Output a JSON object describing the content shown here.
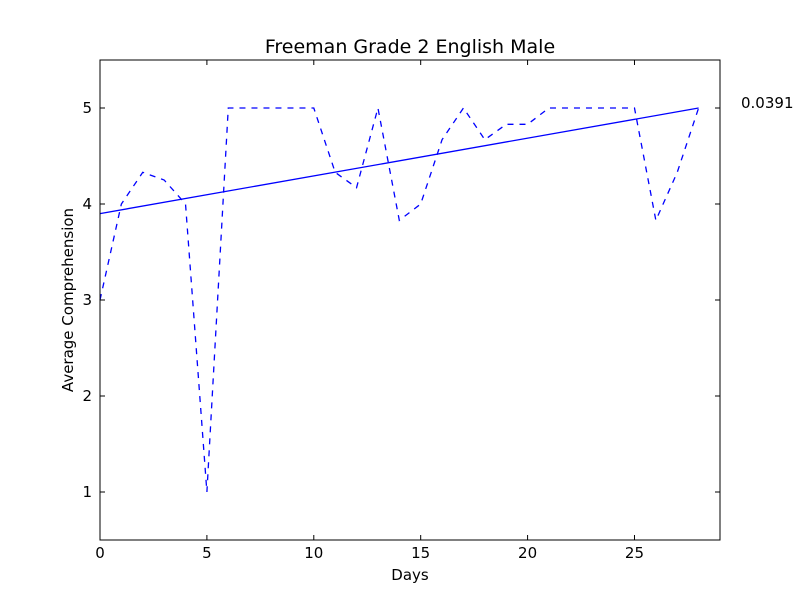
{
  "chart_data": {
    "type": "line",
    "title": "Freeman Grade 2 English Male",
    "xlabel": "Days",
    "ylabel": "Average Comprehension",
    "xlim": [
      0,
      29
    ],
    "ylim": [
      0.5,
      5.5
    ],
    "xticks": [
      0,
      5,
      10,
      15,
      20,
      25
    ],
    "yticks": [
      1,
      2,
      3,
      4,
      5
    ],
    "grid": false,
    "legend": "none",
    "series": [
      {
        "style": "dashed",
        "color": "#0000ff",
        "x": [
          0,
          1,
          2,
          3,
          4,
          5,
          6,
          7,
          8,
          9,
          10,
          11,
          12,
          13,
          14,
          15,
          16,
          17,
          18,
          19,
          20,
          21,
          22,
          23,
          24,
          25,
          26,
          27,
          28
        ],
        "y": [
          3.0,
          4.0,
          4.33,
          4.25,
          4.0,
          1.0,
          5.0,
          5.0,
          5.0,
          5.0,
          5.0,
          4.33,
          4.17,
          5.0,
          3.83,
          4.0,
          4.67,
          5.0,
          4.67,
          4.83,
          4.83,
          5.0,
          5.0,
          5.0,
          5.0,
          5.0,
          3.83,
          4.33,
          5.0
        ]
      },
      {
        "style": "solid",
        "color": "#0000ff",
        "x": [
          0,
          28
        ],
        "y": [
          3.9,
          5.0
        ]
      }
    ],
    "annotation": "0.0391"
  }
}
